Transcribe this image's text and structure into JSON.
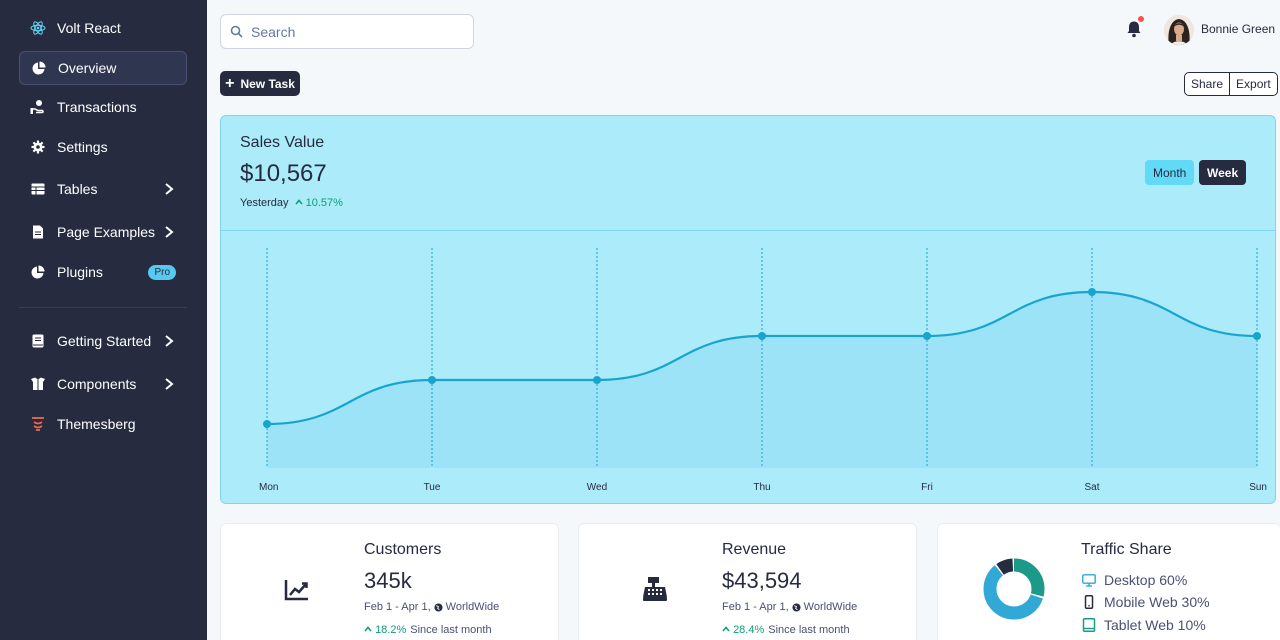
{
  "sidebar": {
    "brand": "Volt React",
    "items": [
      {
        "label": "Overview"
      },
      {
        "label": "Transactions"
      },
      {
        "label": "Settings"
      },
      {
        "label": "Tables"
      },
      {
        "label": "Page Examples"
      },
      {
        "label": "Plugins",
        "badge": "Pro"
      },
      {
        "label": "Getting Started"
      },
      {
        "label": "Components"
      },
      {
        "label": "Themesberg"
      }
    ]
  },
  "topbar": {
    "search_placeholder": "Search",
    "user_name": "Bonnie Green"
  },
  "toolbar": {
    "new_task": "New Task",
    "share": "Share",
    "export": "Export"
  },
  "sales": {
    "title": "Sales Value",
    "value": "$10,567",
    "period": "Yesterday",
    "change": "10.57%",
    "month_label": "Month",
    "week_label": "Week"
  },
  "chart_data": {
    "type": "area",
    "categories": [
      "Mon",
      "Tue",
      "Wed",
      "Thu",
      "Fri",
      "Sat",
      "Sun"
    ],
    "values": [
      1,
      2,
      2,
      3,
      3,
      4,
      3
    ],
    "ylim": [
      0,
      5
    ],
    "grid": "vertical dotted",
    "colors": {
      "line": "#17a5ce",
      "fill": "#9ce3f8"
    }
  },
  "cards": {
    "customers": {
      "title": "Customers",
      "value": "345k",
      "date": "Feb 1 - Apr 1,",
      "region": "WorldWide",
      "growth": "18.2%",
      "since": "Since last month"
    },
    "revenue": {
      "title": "Revenue",
      "value": "$43,594",
      "date": "Feb 1 - Apr 1,",
      "region": "WorldWide",
      "growth": "28.4%",
      "since": "Since last month"
    },
    "traffic": {
      "title": "Traffic Share",
      "items": [
        {
          "label": "Desktop 60%",
          "value": 60,
          "color": "#31a8d6"
        },
        {
          "label": "Mobile Web 30%",
          "value": 30,
          "color": "#1b9a8a"
        },
        {
          "label": "Tablet Web 10%",
          "value": 10,
          "color": "#262b40"
        }
      ]
    }
  }
}
